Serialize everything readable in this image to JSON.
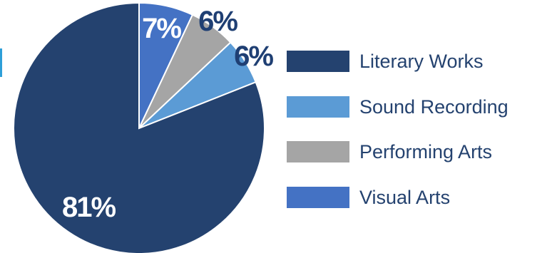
{
  "chart_data": {
    "type": "pie",
    "title": "",
    "slices": [
      {
        "label": "Literary Works",
        "value": 81,
        "value_label": "81%",
        "color": "#24426f",
        "label_color": "#ffffff"
      },
      {
        "label": "Sound Recording",
        "value": 6,
        "value_label": "6%",
        "color": "#5b9bd5",
        "label_color": "#1f3f73"
      },
      {
        "label": "Performing Arts",
        "value": 6,
        "value_label": "6%",
        "color": "#a5a5a5",
        "label_color": "#1f3f73"
      },
      {
        "label": "Visual Arts",
        "value": 7,
        "value_label": "7%",
        "color": "#4472c4",
        "label_color": "#ffffff"
      }
    ],
    "start_angle": "12 o'clock",
    "direction": "clockwise",
    "slice_order": [
      "Visual Arts",
      "Performing Arts",
      "Sound Recording",
      "Literary Works"
    ],
    "legend_placement": "right"
  }
}
